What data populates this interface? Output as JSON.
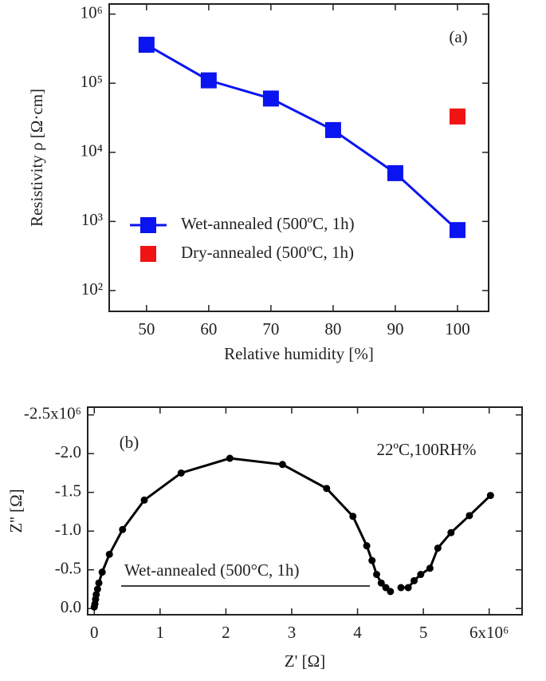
{
  "chart_data": [
    {
      "type": "line",
      "panel_label": "(a)",
      "xlabel": "Relative humidity   [%]",
      "ylabel": "Resistivity ρ  [Ω·cm]",
      "log_y": true,
      "xlim": [
        44,
        105
      ],
      "ylim": [
        50,
        1400000
      ],
      "xticks": [
        50,
        60,
        70,
        80,
        90,
        100
      ],
      "yticks": [
        {
          "value": 100,
          "label": "10²"
        },
        {
          "value": 1000,
          "label": "10³"
        },
        {
          "value": 10000,
          "label": "10⁴"
        },
        {
          "value": 100000,
          "label": "10⁵"
        },
        {
          "value": 1000000,
          "label": "10⁶"
        }
      ],
      "x": [
        50,
        60,
        70,
        80,
        90,
        100
      ],
      "series": [
        {
          "name": "Wet-annealed (500ºC, 1h)",
          "color": "#0a14f0",
          "line": true,
          "marker": "square",
          "values": [
            360000,
            110000,
            60000,
            21000,
            5000,
            750
          ]
        },
        {
          "name": "Dry-annealed (500ºC, 1h)",
          "color": "#f01414",
          "line": false,
          "marker": "square",
          "values": [
            null,
            null,
            null,
            null,
            null,
            33000
          ]
        }
      ]
    },
    {
      "type": "line",
      "panel_label": "(b)",
      "annotation": "22ºC,100RH%",
      "xlabel": "Z'   [Ω]",
      "ylabel": "Z''   [Ω]",
      "log_y": false,
      "xlim": [
        -100000,
        6500000
      ],
      "ylim": [
        80000,
        -2600000
      ],
      "xticks": [
        0,
        {
          "value": 1000000,
          "label": "1"
        },
        {
          "value": 2000000,
          "label": "2"
        },
        {
          "value": 3000000,
          "label": "3"
        },
        {
          "value": 4000000,
          "label": "4"
        },
        {
          "value": 5000000,
          "label": "5"
        },
        {
          "value": 6000000,
          "label": "6x10⁶"
        }
      ],
      "yticks": [
        {
          "value": 0,
          "label": "0.0"
        },
        {
          "value": -500000,
          "label": "-0.5"
        },
        {
          "value": -1000000,
          "label": "-1.0"
        },
        {
          "value": -1500000,
          "label": "-1.5"
        },
        {
          "value": -2000000,
          "label": "-2.0"
        },
        {
          "value": -2500000,
          "label": "-2.5x10⁶"
        }
      ],
      "x": [
        0,
        10000,
        20000,
        30000,
        50000,
        70000,
        120000,
        230000,
        430000,
        760000,
        1320000,
        2060000,
        2860000,
        3530000,
        3930000,
        4140000,
        4220000,
        4290000,
        4360000,
        4430000,
        4500000,
        null,
        4660000,
        4770000,
        4860000,
        4960000,
        5100000,
        5220000,
        5420000,
        5700000,
        6020000
      ],
      "series": [
        {
          "name": "Wet-annealed (500°C, 1h)",
          "color": "#000000",
          "line": true,
          "marker": "circle",
          "values": [
            -20000,
            -60000,
            -120000,
            -180000,
            -250000,
            -330000,
            -470000,
            -700000,
            -1020000,
            -1400000,
            -1750000,
            -1940000,
            -1860000,
            -1550000,
            -1190000,
            -810000,
            -620000,
            -440000,
            -330000,
            -270000,
            -220000,
            null,
            -270000,
            -270000,
            -360000,
            -440000,
            -520000,
            -780000,
            -980000,
            -1200000,
            -1460000
          ]
        }
      ]
    }
  ]
}
